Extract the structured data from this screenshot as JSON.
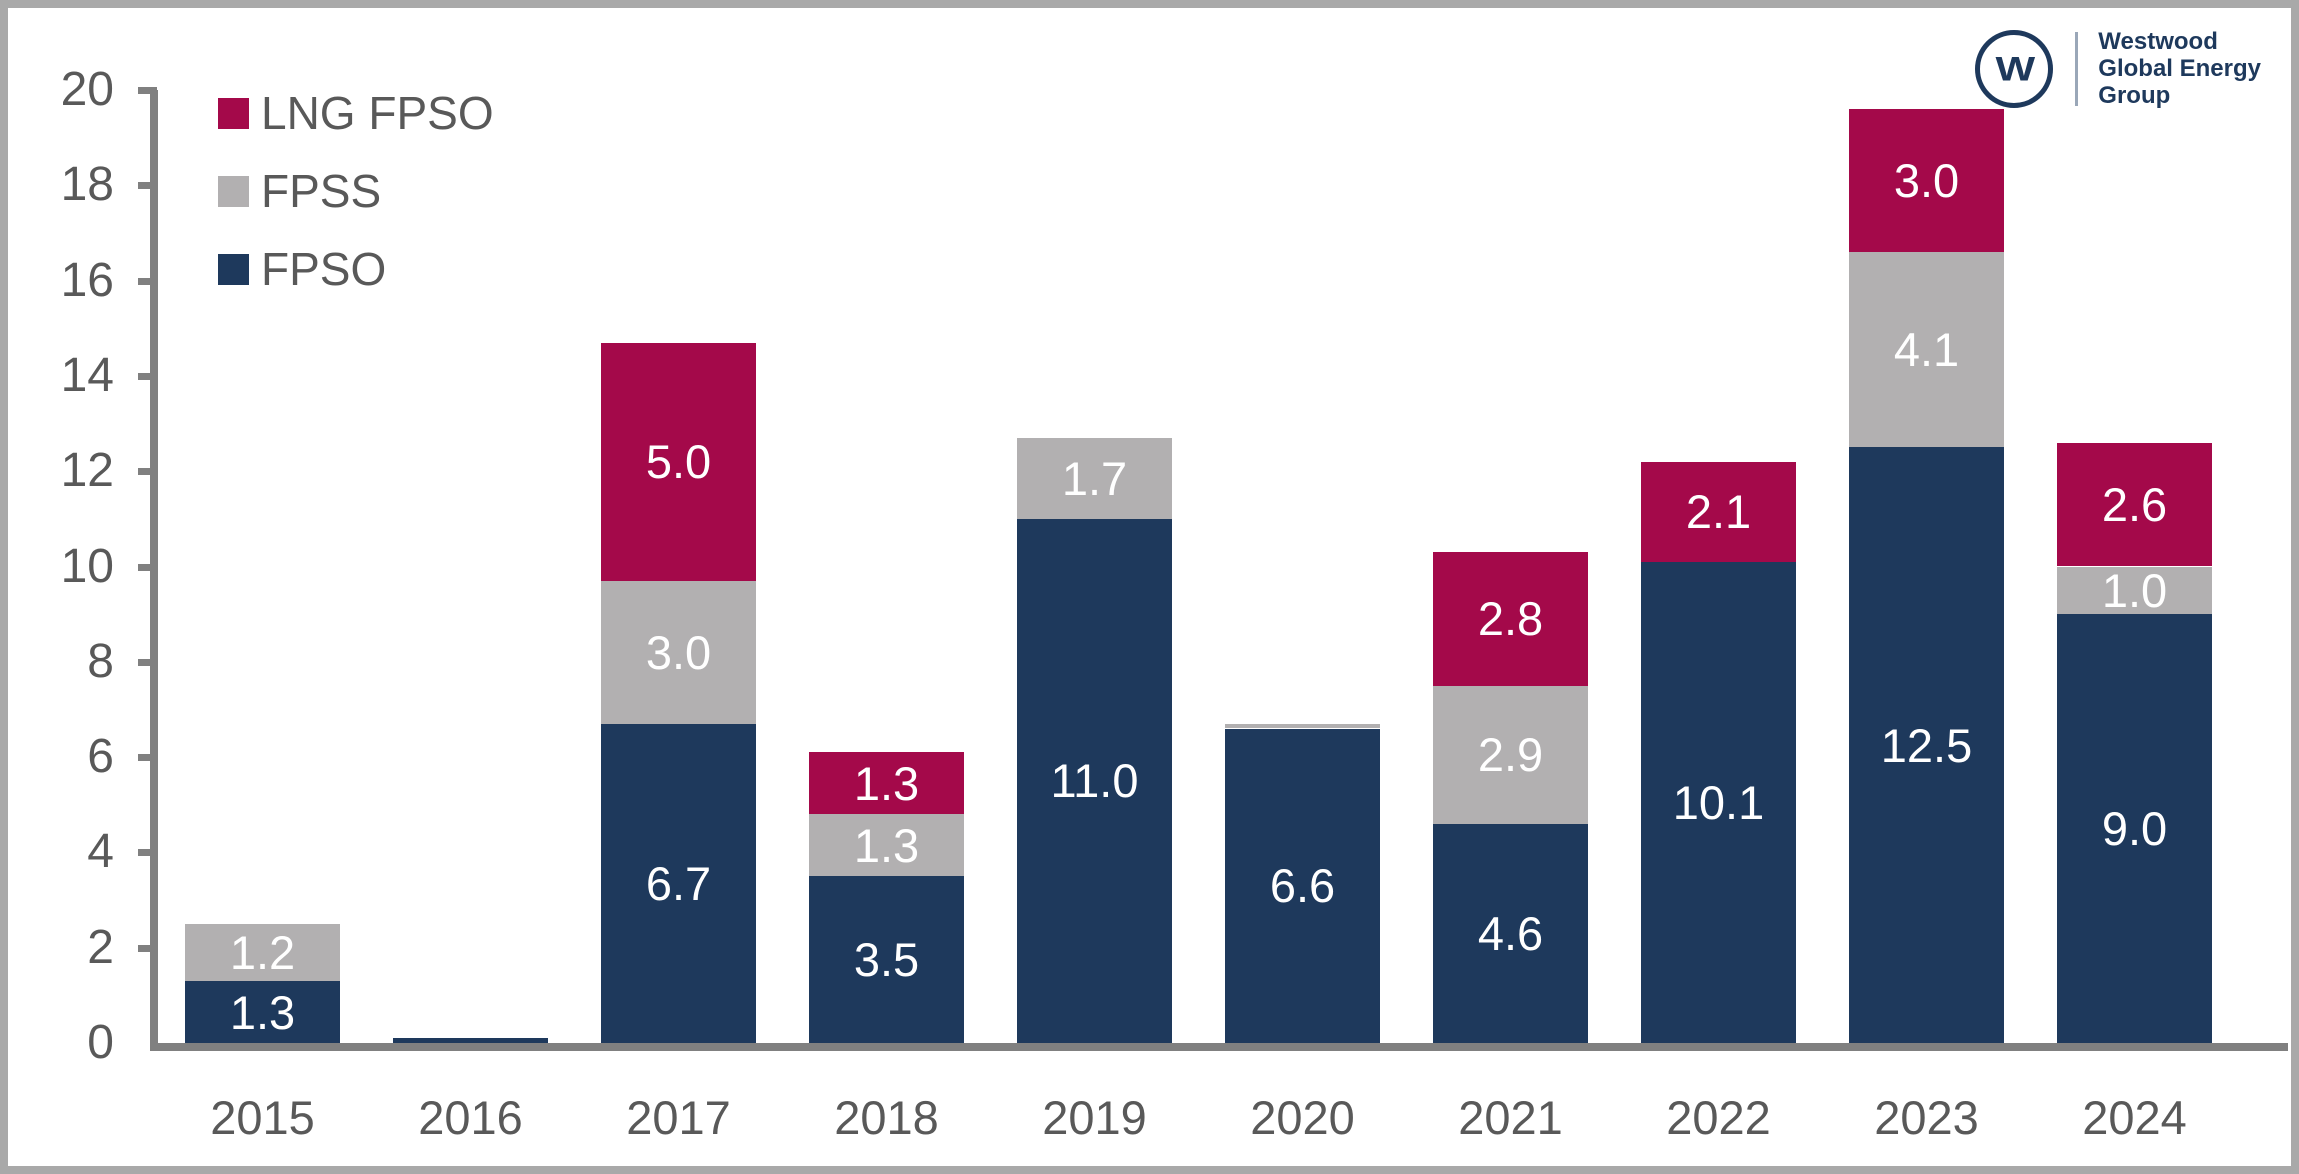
{
  "colors": {
    "fpso_navy": "#1e395c",
    "fpss_gray": "#b2b0b1",
    "lng_crimson": "#a4094a",
    "axis_gray": "#808080",
    "tick_text_gray": "#595959",
    "frame_gray": "#a9a9a9",
    "bar_label_white": "#ffffff",
    "logo_navy": "#1e395c"
  },
  "legend": [
    {
      "label": "LNG FPSO",
      "series": "LNG FPSO"
    },
    {
      "label": "FPSS",
      "series": "FPSS"
    },
    {
      "label": "FPSO",
      "series": "FPSO"
    }
  ],
  "logo": {
    "monogram": "W",
    "lines": [
      "Westwood",
      "Global Energy",
      "Group"
    ]
  },
  "chart_data": {
    "type": "bar",
    "stacked": true,
    "title": "",
    "xlabel": "",
    "ylabel": "",
    "categories": [
      "2015",
      "2016",
      "2017",
      "2018",
      "2019",
      "2020",
      "2021",
      "2022",
      "2023",
      "2024"
    ],
    "series": [
      {
        "name": "FPSO",
        "color": "#1e395c",
        "values": [
          1.3,
          0.1,
          6.7,
          3.5,
          11.0,
          6.6,
          4.6,
          10.1,
          12.5,
          9.0
        ]
      },
      {
        "name": "FPSS",
        "color": "#b2b0b1",
        "values": [
          1.2,
          0.0,
          3.0,
          1.3,
          1.7,
          0.1,
          2.9,
          0.0,
          4.1,
          1.0
        ]
      },
      {
        "name": "LNG FPSO",
        "color": "#a4094a",
        "values": [
          0.0,
          0.0,
          5.0,
          1.3,
          0.0,
          0.0,
          2.8,
          2.1,
          3.0,
          2.6
        ]
      }
    ],
    "totals": [
      2.5,
      0.1,
      14.7,
      6.1,
      12.7,
      6.7,
      10.3,
      12.2,
      19.6,
      12.6
    ],
    "ylim": [
      0,
      20
    ],
    "yticks": [
      0,
      2,
      4,
      6,
      8,
      10,
      12,
      14,
      16,
      18,
      20
    ],
    "grid": false,
    "legend_position": "top-left-inside",
    "label_min_value": 1.0,
    "label_decimals": 1
  }
}
